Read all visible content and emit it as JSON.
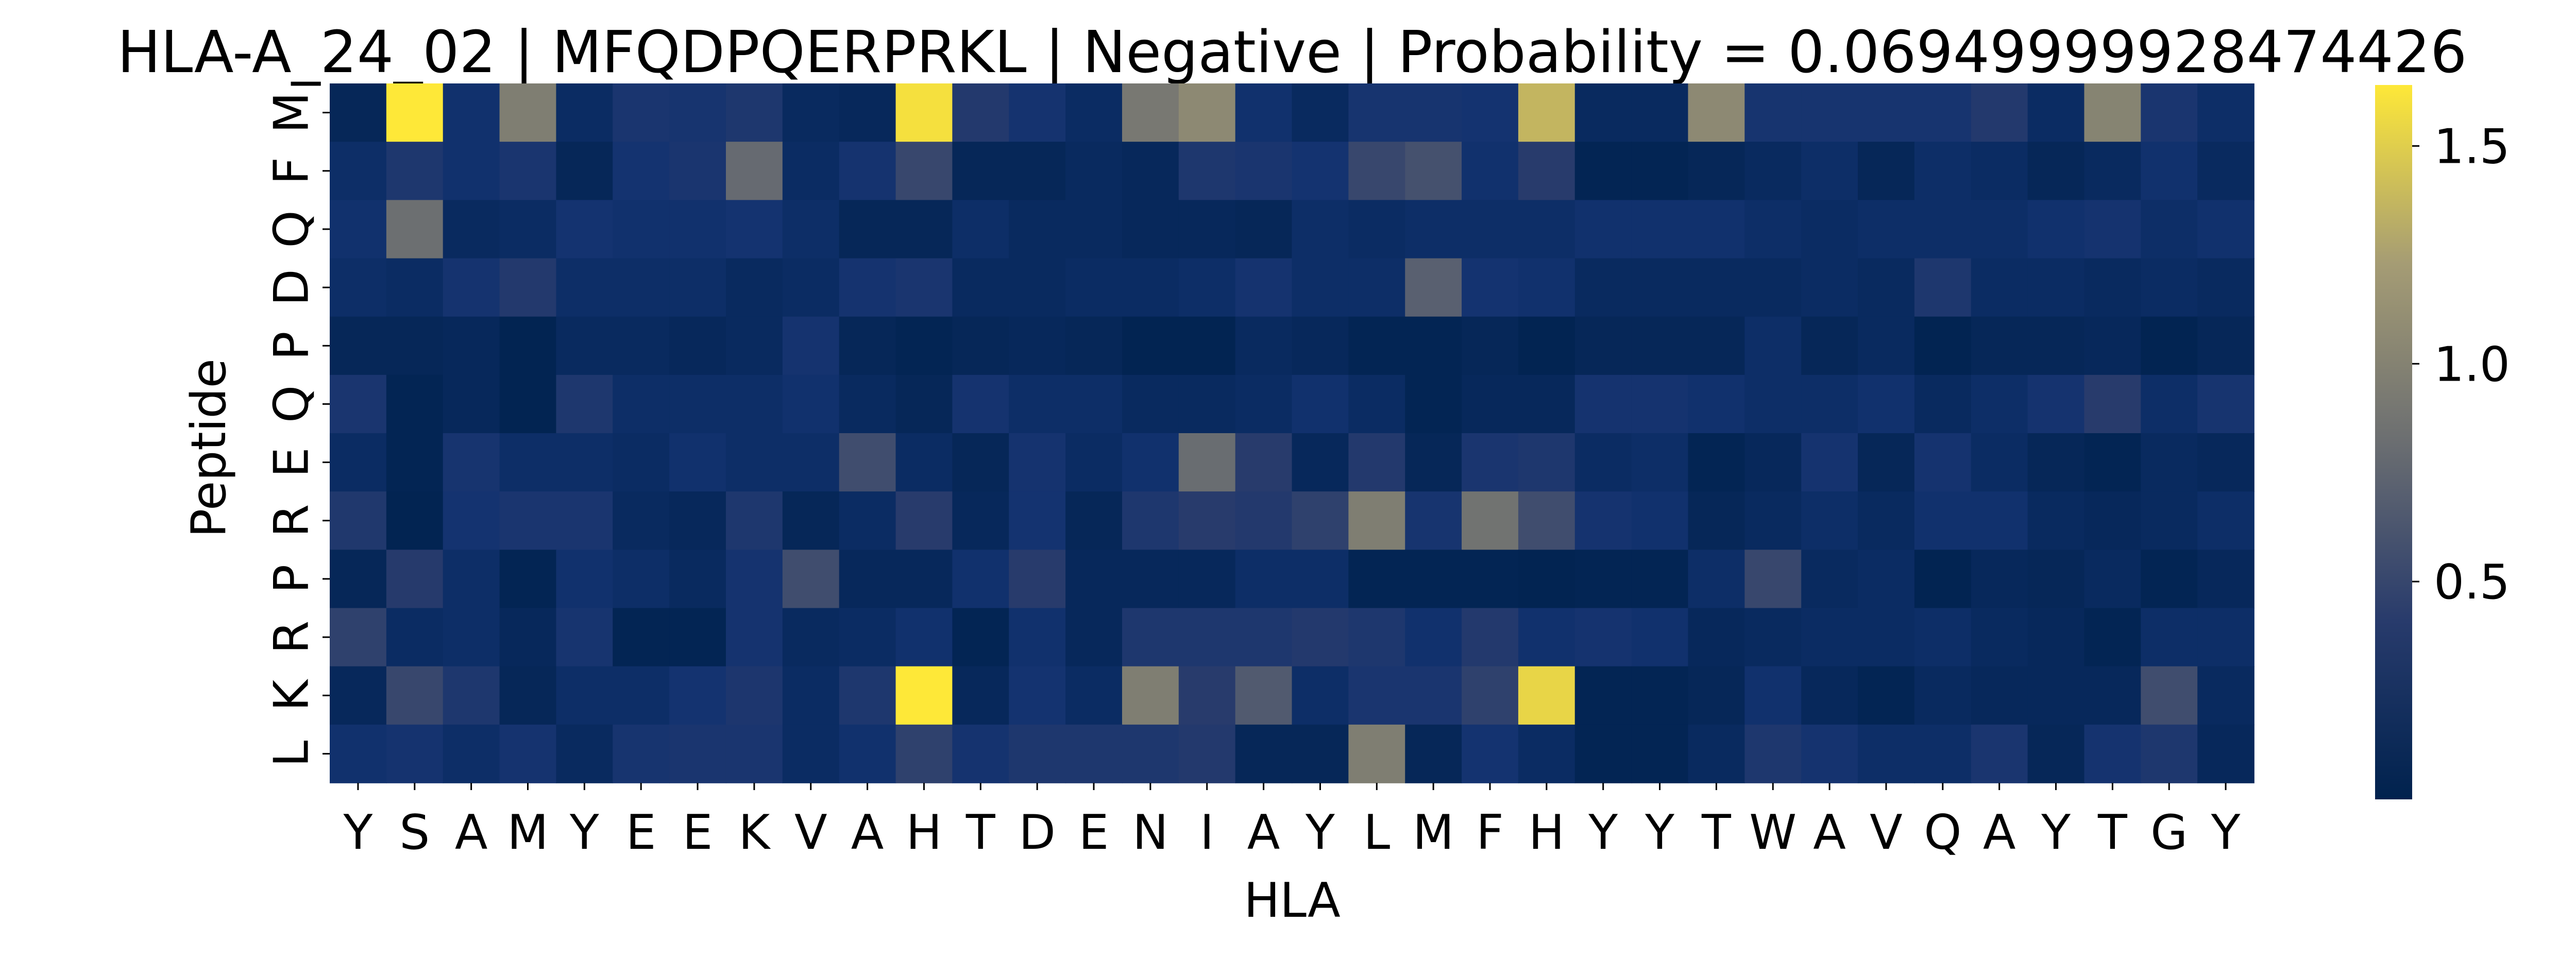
{
  "chart_data": {
    "type": "heatmap",
    "title": "HLA-A_24_02 | MFQDPQERPRKL | Negative | Probability = 0.06949999928474426",
    "xlabel": "HLA",
    "ylabel": "Peptide",
    "x_categories": [
      "Y",
      "S",
      "A",
      "M",
      "Y",
      "E",
      "E",
      "K",
      "V",
      "A",
      "H",
      "T",
      "D",
      "E",
      "N",
      "I",
      "A",
      "Y",
      "L",
      "M",
      "F",
      "H",
      "Y",
      "Y",
      "T",
      "W",
      "A",
      "V",
      "Q",
      "A",
      "Y",
      "T",
      "G",
      "Y"
    ],
    "y_categories": [
      "M",
      "F",
      "Q",
      "D",
      "P",
      "Q",
      "E",
      "R",
      "P",
      "R",
      "K",
      "L"
    ],
    "colormap": "cividis",
    "value_range": [
      0.0,
      1.62
    ],
    "colorbar_ticks": [
      0.5,
      1.0,
      1.5
    ],
    "colorbar_tick_labels": [
      "0.5",
      "1.0",
      "1.5"
    ],
    "values": [
      [
        0.05,
        1.62,
        0.15,
        0.95,
        0.1,
        0.25,
        0.22,
        0.3,
        0.08,
        0.06,
        1.58,
        0.35,
        0.2,
        0.1,
        0.9,
        1.05,
        0.15,
        0.08,
        0.22,
        0.22,
        0.18,
        1.35,
        0.08,
        0.08,
        1.05,
        0.22,
        0.22,
        0.22,
        0.22,
        0.35,
        0.1,
        1.0,
        0.25,
        0.12
      ],
      [
        0.12,
        0.3,
        0.15,
        0.25,
        0.05,
        0.18,
        0.25,
        0.78,
        0.1,
        0.2,
        0.5,
        0.05,
        0.05,
        0.08,
        0.06,
        0.3,
        0.25,
        0.18,
        0.5,
        0.58,
        0.15,
        0.4,
        0.03,
        0.03,
        0.05,
        0.08,
        0.12,
        0.05,
        0.12,
        0.1,
        0.05,
        0.08,
        0.15,
        0.08
      ],
      [
        0.15,
        0.82,
        0.08,
        0.1,
        0.18,
        0.15,
        0.15,
        0.18,
        0.12,
        0.05,
        0.05,
        0.12,
        0.08,
        0.08,
        0.06,
        0.06,
        0.05,
        0.12,
        0.1,
        0.12,
        0.12,
        0.12,
        0.15,
        0.15,
        0.15,
        0.12,
        0.1,
        0.12,
        0.12,
        0.12,
        0.15,
        0.2,
        0.12,
        0.15
      ],
      [
        0.12,
        0.1,
        0.2,
        0.35,
        0.12,
        0.12,
        0.12,
        0.08,
        0.1,
        0.2,
        0.25,
        0.08,
        0.08,
        0.1,
        0.1,
        0.12,
        0.2,
        0.12,
        0.12,
        0.7,
        0.18,
        0.15,
        0.08,
        0.08,
        0.08,
        0.08,
        0.1,
        0.08,
        0.3,
        0.1,
        0.1,
        0.08,
        0.1,
        0.08
      ],
      [
        0.05,
        0.05,
        0.06,
        0.02,
        0.08,
        0.08,
        0.06,
        0.08,
        0.2,
        0.05,
        0.03,
        0.05,
        0.06,
        0.05,
        0.02,
        0.02,
        0.08,
        0.06,
        0.03,
        0.03,
        0.05,
        0.02,
        0.05,
        0.05,
        0.05,
        0.12,
        0.05,
        0.08,
        0.02,
        0.05,
        0.05,
        0.06,
        0.02,
        0.05
      ],
      [
        0.25,
        0.03,
        0.06,
        0.02,
        0.3,
        0.12,
        0.12,
        0.12,
        0.15,
        0.08,
        0.05,
        0.2,
        0.12,
        0.12,
        0.08,
        0.08,
        0.1,
        0.15,
        0.1,
        0.03,
        0.06,
        0.06,
        0.2,
        0.2,
        0.15,
        0.12,
        0.12,
        0.15,
        0.08,
        0.12,
        0.2,
        0.4,
        0.12,
        0.22
      ],
      [
        0.1,
        0.03,
        0.22,
        0.12,
        0.12,
        0.1,
        0.15,
        0.12,
        0.12,
        0.55,
        0.1,
        0.05,
        0.2,
        0.1,
        0.15,
        0.8,
        0.4,
        0.06,
        0.35,
        0.05,
        0.25,
        0.3,
        0.1,
        0.12,
        0.03,
        0.06,
        0.2,
        0.05,
        0.2,
        0.1,
        0.05,
        0.03,
        0.08,
        0.06
      ],
      [
        0.32,
        0.02,
        0.18,
        0.25,
        0.25,
        0.08,
        0.06,
        0.3,
        0.05,
        0.1,
        0.4,
        0.06,
        0.18,
        0.05,
        0.3,
        0.4,
        0.35,
        0.45,
        0.95,
        0.22,
        0.85,
        0.55,
        0.2,
        0.15,
        0.05,
        0.08,
        0.12,
        0.08,
        0.15,
        0.15,
        0.08,
        0.06,
        0.08,
        0.12
      ],
      [
        0.05,
        0.38,
        0.12,
        0.03,
        0.15,
        0.12,
        0.08,
        0.2,
        0.55,
        0.06,
        0.06,
        0.15,
        0.4,
        0.06,
        0.06,
        0.06,
        0.12,
        0.12,
        0.03,
        0.03,
        0.03,
        0.02,
        0.03,
        0.03,
        0.12,
        0.5,
        0.08,
        0.1,
        0.02,
        0.06,
        0.05,
        0.08,
        0.03,
        0.06
      ],
      [
        0.45,
        0.1,
        0.12,
        0.06,
        0.22,
        0.03,
        0.03,
        0.2,
        0.08,
        0.1,
        0.15,
        0.03,
        0.15,
        0.06,
        0.3,
        0.3,
        0.3,
        0.35,
        0.3,
        0.15,
        0.35,
        0.15,
        0.2,
        0.15,
        0.06,
        0.08,
        0.1,
        0.1,
        0.12,
        0.08,
        0.06,
        0.03,
        0.12,
        0.12
      ],
      [
        0.06,
        0.5,
        0.3,
        0.05,
        0.12,
        0.12,
        0.18,
        0.28,
        0.1,
        0.3,
        1.62,
        0.06,
        0.18,
        0.1,
        0.95,
        0.4,
        0.65,
        0.12,
        0.25,
        0.25,
        0.45,
        1.52,
        0.03,
        0.03,
        0.05,
        0.15,
        0.06,
        0.03,
        0.08,
        0.06,
        0.06,
        0.06,
        0.55,
        0.08
      ],
      [
        0.15,
        0.2,
        0.12,
        0.2,
        0.08,
        0.22,
        0.25,
        0.25,
        0.1,
        0.15,
        0.45,
        0.2,
        0.3,
        0.3,
        0.3,
        0.35,
        0.05,
        0.05,
        0.95,
        0.05,
        0.18,
        0.1,
        0.03,
        0.03,
        0.08,
        0.3,
        0.2,
        0.12,
        0.12,
        0.25,
        0.05,
        0.2,
        0.3,
        0.06
      ]
    ]
  }
}
